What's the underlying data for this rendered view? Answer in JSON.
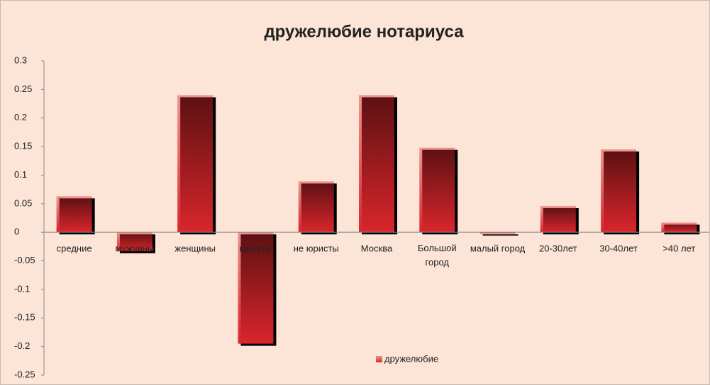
{
  "chart_data": {
    "type": "bar",
    "title": "дружелюбие нотариуса",
    "categories": [
      "средние",
      "мужчины",
      "женщины",
      "юристы",
      "не юристы",
      "Москва",
      "Большой город",
      "малый город",
      "20-30лет",
      "30-40лет",
      ">40 лет"
    ],
    "series": [
      {
        "name": "дружелюбие",
        "color": "#d9262c",
        "values": [
          0.063,
          -0.033,
          0.24,
          -0.195,
          0.089,
          0.24,
          0.148,
          -0.002,
          0.046,
          0.145,
          0.017
        ]
      }
    ],
    "ylim": [
      -0.25,
      0.3
    ],
    "yticks": [
      0.3,
      0.25,
      0.2,
      0.15,
      0.1,
      0.05,
      0,
      -0.05,
      -0.1,
      -0.15,
      -0.2,
      -0.25
    ],
    "grid": false,
    "legend": "bottom"
  }
}
